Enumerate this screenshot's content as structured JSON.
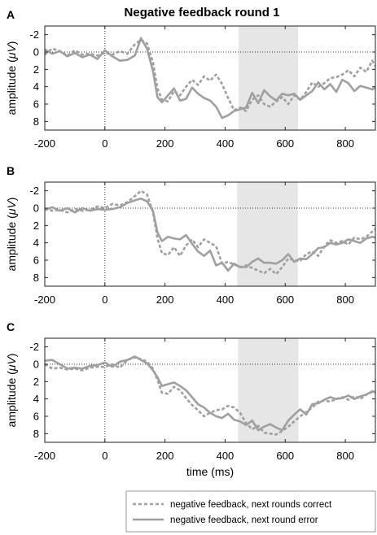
{
  "figure": {
    "title": "Negative feedback round 1",
    "xlabel": "time (ms)"
  },
  "legend": {
    "items": [
      {
        "label": "negative feedback, next rounds correct",
        "style": "dashed",
        "color": "#a0a0a0"
      },
      {
        "label": "negative feedback, next round error",
        "style": "solid",
        "color": "#a0a0a0"
      }
    ]
  },
  "chart_data": [
    {
      "type": "line",
      "panel_label": "A",
      "title": "Negative feedback round 1",
      "xlabel": "",
      "ylabel_prefix": "amplitude (",
      "ylabel_mu": "μV",
      "ylabel_suffix": ")",
      "xlim": [
        -200,
        900
      ],
      "ylim": [
        -3,
        9
      ],
      "y_reversed": true,
      "xticks": [
        -200,
        0,
        200,
        400,
        600,
        800
      ],
      "yticks": [
        -2,
        0,
        2,
        4,
        6,
        8
      ],
      "shaded_interval": [
        445,
        643
      ],
      "zero_line": true,
      "stimulus_line_x": 0,
      "series": [
        {
          "name": "negative feedback, next rounds correct",
          "style": "dashed",
          "x": [
            -200,
            -175,
            -150,
            -125,
            -100,
            -75,
            -50,
            -25,
            0,
            25,
            50,
            75,
            100,
            120,
            140,
            160,
            175,
            190,
            210,
            230,
            250,
            270,
            290,
            310,
            330,
            350,
            370,
            390,
            410,
            430,
            450,
            470,
            490,
            510,
            530,
            550,
            570,
            590,
            610,
            630,
            650,
            670,
            690,
            710,
            730,
            750,
            770,
            790,
            810,
            830,
            850,
            870,
            890,
            900
          ],
          "y": [
            0.3,
            -0.4,
            -0.1,
            0.4,
            -0.2,
            0.3,
            0.2,
            0.4,
            0.1,
            0.3,
            -0.1,
            0.2,
            -0.9,
            -1.4,
            -1.0,
            1.2,
            4.2,
            5.5,
            5.7,
            4.5,
            5.0,
            4.0,
            3.2,
            3.8,
            2.8,
            3.3,
            2.6,
            3.7,
            5.3,
            6.7,
            6.4,
            6.8,
            5.5,
            5.0,
            6.0,
            6.3,
            5.7,
            5.2,
            6.0,
            5.0,
            5.5,
            4.6,
            3.5,
            4.0,
            3.6,
            3.0,
            2.9,
            2.6,
            2.1,
            2.8,
            1.8,
            2.3,
            1.0,
            1.6
          ]
        },
        {
          "name": "negative feedback, next round error",
          "style": "solid",
          "x": [
            -200,
            -175,
            -150,
            -125,
            -100,
            -75,
            -50,
            -25,
            0,
            25,
            50,
            75,
            100,
            120,
            140,
            160,
            175,
            190,
            210,
            230,
            250,
            270,
            290,
            310,
            330,
            350,
            370,
            390,
            410,
            430,
            450,
            470,
            490,
            510,
            530,
            550,
            570,
            590,
            610,
            630,
            650,
            670,
            690,
            710,
            730,
            750,
            770,
            790,
            810,
            830,
            850,
            870,
            890,
            900
          ],
          "y": [
            -0.3,
            0.2,
            -0.1,
            0.5,
            0.1,
            0.6,
            0.3,
            0.8,
            -0.2,
            0.5,
            1.0,
            0.9,
            0.4,
            -1.6,
            -0.4,
            2.2,
            5.2,
            5.8,
            5.0,
            4.2,
            5.6,
            5.4,
            4.1,
            4.8,
            5.3,
            5.6,
            6.3,
            7.6,
            7.3,
            6.8,
            6.6,
            6.4,
            4.7,
            5.9,
            4.4,
            5.1,
            5.6,
            4.8,
            5.0,
            4.8,
            5.5,
            5.0,
            4.5,
            3.5,
            4.3,
            3.7,
            4.6,
            3.2,
            3.6,
            4.5,
            3.9,
            4.1,
            4.3,
            4.1
          ]
        }
      ]
    },
    {
      "type": "line",
      "panel_label": "B",
      "xlabel": "",
      "ylabel_prefix": "amplitude (",
      "ylabel_mu": "μV",
      "ylabel_suffix": ")",
      "xlim": [
        -200,
        900
      ],
      "ylim": [
        -3,
        9
      ],
      "y_reversed": true,
      "xticks": [
        -200,
        0,
        200,
        400,
        600,
        800
      ],
      "yticks": [
        -2,
        0,
        2,
        4,
        6,
        8
      ],
      "shaded_interval": [
        440,
        642
      ],
      "zero_line": true,
      "stimulus_line_x": 0,
      "series": [
        {
          "name": "negative feedback, next rounds correct",
          "style": "dashed",
          "x": [
            -200,
            -175,
            -150,
            -125,
            -100,
            -75,
            -50,
            -25,
            0,
            25,
            50,
            75,
            100,
            120,
            140,
            160,
            175,
            190,
            210,
            230,
            250,
            270,
            290,
            310,
            330,
            350,
            370,
            390,
            410,
            430,
            450,
            470,
            490,
            510,
            530,
            550,
            570,
            590,
            610,
            630,
            650,
            670,
            690,
            710,
            730,
            750,
            770,
            790,
            810,
            830,
            850,
            870,
            890,
            900
          ],
          "y": [
            0.1,
            0.3,
            0.2,
            0.5,
            0.1,
            0.3,
            0.2,
            -0.2,
            0.0,
            -0.5,
            -0.3,
            -0.7,
            -1.4,
            -2.0,
            -1.6,
            0.5,
            3.5,
            5.2,
            5.4,
            4.5,
            5.5,
            4.3,
            3.6,
            4.5,
            3.6,
            4.0,
            4.4,
            6.4,
            6.2,
            6.5,
            6.8,
            6.6,
            6.9,
            7.2,
            7.5,
            7.0,
            7.6,
            6.8,
            5.8,
            6.0,
            6.1,
            5.3,
            5.0,
            5.5,
            4.4,
            3.7,
            4.0,
            3.8,
            4.2,
            3.4,
            3.6,
            3.3,
            2.7,
            2.4
          ]
        },
        {
          "name": "negative feedback, next round error",
          "style": "solid",
          "x": [
            -200,
            -175,
            -150,
            -125,
            -100,
            -75,
            -50,
            -25,
            0,
            25,
            50,
            75,
            100,
            120,
            140,
            160,
            175,
            190,
            210,
            230,
            250,
            270,
            290,
            310,
            330,
            350,
            370,
            390,
            410,
            430,
            450,
            470,
            490,
            510,
            530,
            550,
            570,
            590,
            610,
            630,
            650,
            670,
            690,
            710,
            730,
            750,
            770,
            790,
            810,
            830,
            850,
            870,
            890,
            900
          ],
          "y": [
            0.2,
            -0.1,
            0.3,
            0.0,
            0.5,
            0.0,
            0.3,
            0.1,
            0.2,
            0.1,
            -0.1,
            -0.6,
            -0.9,
            -1.1,
            -0.8,
            0.3,
            2.8,
            3.8,
            3.3,
            3.5,
            3.6,
            3.1,
            4.1,
            5.0,
            5.5,
            4.9,
            6.6,
            6.3,
            7.2,
            6.4,
            6.8,
            6.8,
            6.2,
            5.8,
            6.3,
            6.3,
            6.4,
            6.0,
            5.3,
            6.2,
            5.8,
            5.9,
            5.3,
            4.6,
            4.5,
            4.0,
            4.2,
            4.0,
            3.6,
            3.8,
            4.0,
            3.5,
            3.3,
            3.4
          ]
        }
      ]
    },
    {
      "type": "line",
      "panel_label": "C",
      "xlabel": "time (ms)",
      "ylabel_prefix": "amplitude (",
      "ylabel_mu": "μV",
      "ylabel_suffix": ")",
      "xlim": [
        -200,
        900
      ],
      "ylim": [
        -3,
        9
      ],
      "y_reversed": true,
      "xticks": [
        -200,
        0,
        200,
        400,
        600,
        800
      ],
      "yticks": [
        -2,
        0,
        2,
        4,
        6,
        8
      ],
      "shaded_interval": [
        443,
        644
      ],
      "zero_line": true,
      "stimulus_line_x": 0,
      "series": [
        {
          "name": "negative feedback, next rounds correct",
          "style": "dashed",
          "x": [
            -200,
            -175,
            -150,
            -125,
            -100,
            -75,
            -50,
            -25,
            0,
            25,
            50,
            75,
            100,
            120,
            140,
            160,
            175,
            190,
            210,
            230,
            250,
            270,
            290,
            310,
            330,
            350,
            370,
            390,
            410,
            430,
            450,
            470,
            490,
            510,
            530,
            550,
            570,
            590,
            610,
            630,
            650,
            670,
            690,
            710,
            730,
            750,
            770,
            790,
            810,
            830,
            850,
            870,
            890,
            900
          ],
          "y": [
            0.0,
            0.5,
            0.4,
            0.6,
            0.5,
            0.7,
            0.4,
            0.3,
            0.3,
            0.0,
            0.4,
            -0.5,
            -0.8,
            -0.6,
            -0.3,
            0.5,
            1.8,
            3.3,
            3.4,
            2.6,
            3.0,
            3.9,
            4.7,
            5.3,
            6.0,
            5.6,
            5.3,
            5.2,
            4.8,
            5.0,
            5.6,
            6.8,
            7.5,
            7.1,
            7.9,
            8.0,
            8.1,
            7.7,
            7.2,
            6.6,
            6.0,
            5.5,
            5.0,
            4.3,
            4.2,
            4.3,
            4.0,
            3.8,
            4.1,
            3.7,
            4.0,
            3.5,
            3.2,
            3.3
          ]
        },
        {
          "name": "negative feedback, next round error",
          "style": "solid",
          "x": [
            -200,
            -175,
            -150,
            -125,
            -100,
            -75,
            -50,
            -25,
            0,
            25,
            50,
            75,
            100,
            120,
            140,
            160,
            175,
            190,
            210,
            230,
            250,
            270,
            290,
            310,
            330,
            350,
            370,
            390,
            410,
            430,
            450,
            470,
            490,
            510,
            530,
            550,
            570,
            590,
            610,
            630,
            650,
            670,
            690,
            710,
            730,
            750,
            770,
            790,
            810,
            830,
            850,
            870,
            890,
            900
          ],
          "y": [
            -0.4,
            -0.5,
            0.0,
            0.5,
            0.4,
            0.5,
            0.2,
            0.1,
            -0.2,
            0.3,
            -0.3,
            -0.5,
            -0.9,
            -0.5,
            -0.1,
            0.7,
            1.5,
            2.5,
            2.3,
            2.1,
            2.5,
            3.0,
            3.8,
            4.6,
            5.0,
            5.6,
            6.0,
            6.2,
            5.7,
            6.4,
            6.6,
            7.0,
            6.5,
            7.6,
            7.2,
            6.9,
            7.3,
            7.6,
            6.5,
            5.8,
            5.2,
            5.8,
            4.6,
            4.5,
            4.1,
            3.8,
            4.0,
            3.9,
            3.6,
            4.0,
            3.7,
            3.5,
            3.1,
            3.2
          ]
        }
      ]
    }
  ]
}
